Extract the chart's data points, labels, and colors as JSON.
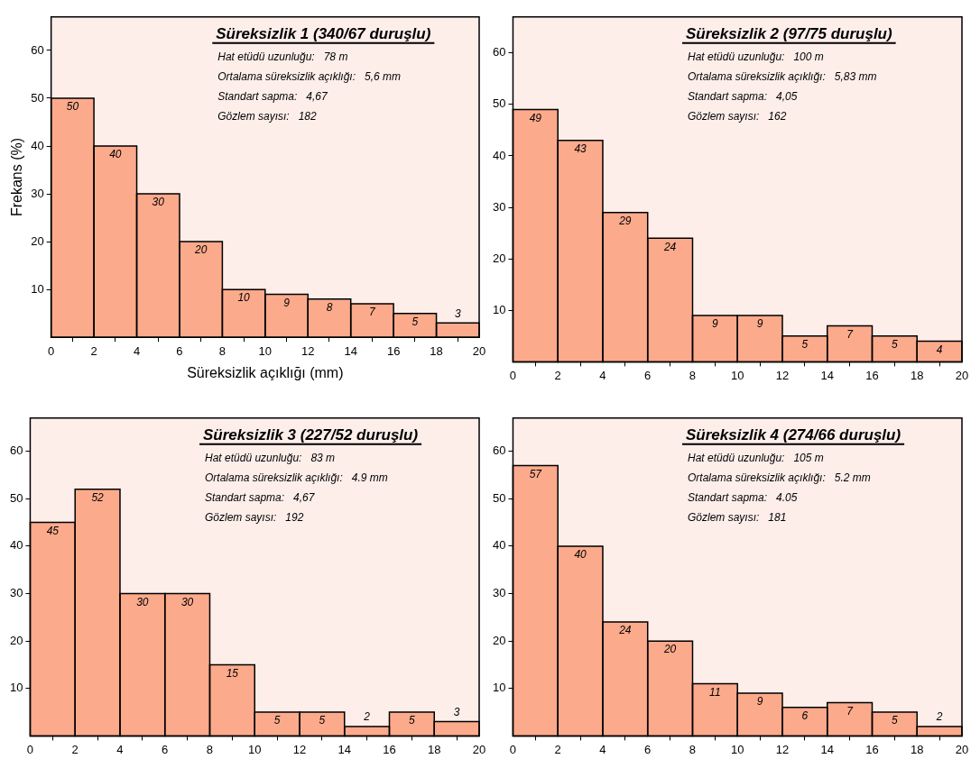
{
  "chart_data": [
    {
      "type": "histogram",
      "title": "Süreksizlik 1 (340/67 duruşlu)",
      "ylabel": "Frekans (%)",
      "xlabel": "Süreksizlik açıklığı (mm)",
      "color": "#fcaa8c",
      "bins": [
        0,
        2,
        4,
        6,
        8,
        10,
        12,
        14,
        16,
        18,
        20
      ],
      "values": [
        50,
        40,
        30,
        20,
        10,
        9,
        8,
        7,
        5,
        3
      ],
      "data_labels": true,
      "xlim": [
        0,
        20
      ],
      "xticks": [
        0,
        2,
        4,
        6,
        8,
        10,
        12,
        14,
        16,
        18,
        20
      ],
      "ylim": [
        0,
        67
      ],
      "yticks": [
        10,
        20,
        30,
        40,
        50,
        60
      ],
      "grid": false,
      "legend": false,
      "annotations": [
        "Hat etüdü uzunluğu:   78 m",
        "Ortalama süreksizlik açıklığı:   5,6 mm",
        "Standart sapma:   4,67",
        "Gözlem sayısı:   182"
      ]
    },
    {
      "type": "histogram",
      "title": "Süreksizlik 2 (97/75 duruşlu)",
      "color": "#fcaa8c",
      "bins": [
        0,
        2,
        4,
        6,
        8,
        10,
        12,
        14,
        16,
        18,
        20
      ],
      "values": [
        49,
        43,
        29,
        24,
        9,
        9,
        5,
        7,
        5,
        4
      ],
      "data_labels": true,
      "xlim": [
        0,
        20
      ],
      "xticks": [
        0,
        2,
        4,
        6,
        8,
        10,
        12,
        14,
        16,
        18,
        20
      ],
      "ylim": [
        0,
        67
      ],
      "yticks": [
        10,
        20,
        30,
        40,
        50,
        60
      ],
      "grid": false,
      "legend": false,
      "annotations": [
        "Hat etüdü uzunluğu:   100 m",
        "Ortalama süreksizlik açıklığı:   5,83 mm",
        "Standart sapma:   4,05",
        "Gözlem sayısı:   162"
      ]
    },
    {
      "type": "histogram",
      "title": "Süreksizlik 3 (227/52 duruşlu)",
      "color": "#fcaa8c",
      "bins": [
        0,
        2,
        4,
        6,
        8,
        10,
        12,
        14,
        16,
        18,
        20
      ],
      "values": [
        45,
        52,
        30,
        30,
        15,
        5,
        5,
        2,
        5,
        3
      ],
      "data_labels": true,
      "xlim": [
        0,
        20
      ],
      "xticks": [
        0,
        2,
        4,
        6,
        8,
        10,
        12,
        14,
        16,
        18,
        20
      ],
      "ylim": [
        0,
        67
      ],
      "yticks": [
        10,
        20,
        30,
        40,
        50,
        60
      ],
      "grid": false,
      "legend": false,
      "annotations": [
        "Hat etüdü uzunluğu:   83 m",
        "Ortalama süreksizlik açıklığı:   4.9 mm",
        "Standart sapma:   4,67",
        "Gözlem sayısı:   192"
      ]
    },
    {
      "type": "histogram",
      "title": "Süreksizlik 4 (274/66 duruşlu)",
      "color": "#fcaa8c",
      "bins": [
        0,
        2,
        4,
        6,
        8,
        10,
        12,
        14,
        16,
        18,
        20
      ],
      "values": [
        57,
        40,
        24,
        20,
        11,
        9,
        6,
        7,
        5,
        2
      ],
      "data_labels": true,
      "xlim": [
        0,
        20
      ],
      "xticks": [
        0,
        2,
        4,
        6,
        8,
        10,
        12,
        14,
        16,
        18,
        20
      ],
      "ylim": [
        0,
        67
      ],
      "yticks": [
        10,
        20,
        30,
        40,
        50,
        60
      ],
      "grid": false,
      "legend": false,
      "annotations": [
        "Hat etüdü uzunluğu:   105 m",
        "Ortalama süreksizlik açıklığı:   5.2 mm",
        "Standart sapma:   4.05",
        "Gözlem sayısı:   181"
      ]
    }
  ]
}
